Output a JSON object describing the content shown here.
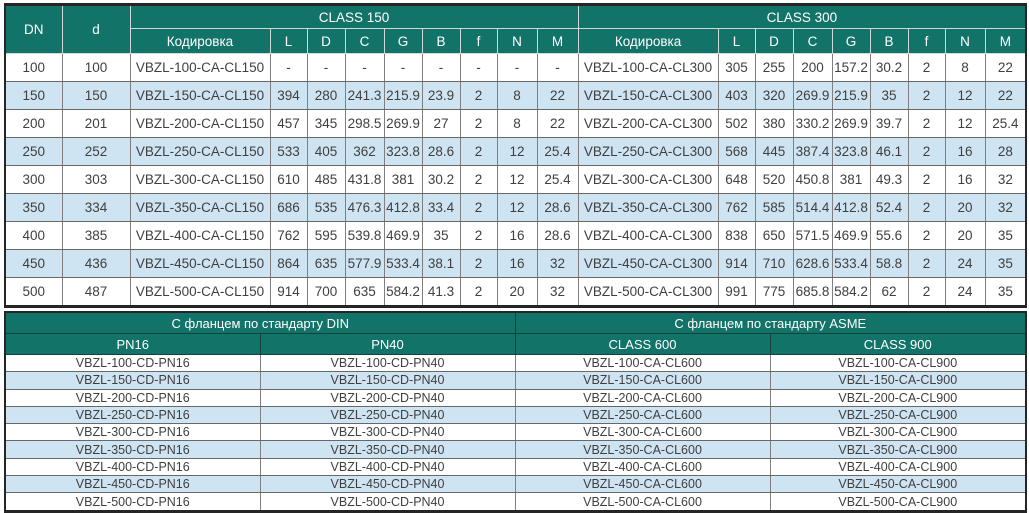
{
  "colors": {
    "header_bg": "#127369",
    "stripe_bg": "#CFE4F2",
    "row_bg": "#FFFFFF",
    "grid_border": "#7F7F7F",
    "outer_border": "#252525",
    "header_text": "#FFFFFF",
    "body_text": "#3F3F3F"
  },
  "top_table": {
    "col_dn": "DN",
    "col_d": "d",
    "group1": "CLASS 150",
    "group2": "CLASS 300",
    "sub_headers": [
      "Кодировка",
      "L",
      "D",
      "C",
      "G",
      "B",
      "f",
      "N",
      "M"
    ],
    "rows": [
      {
        "dn": "100",
        "d": "100",
        "cl150": {
          "code": "VBZL-100-CA-CL150",
          "vals": [
            "-",
            "-",
            "-",
            "-",
            "-",
            "-",
            "-",
            "-"
          ]
        },
        "cl300": {
          "code": "VBZL-100-CA-CL300",
          "vals": [
            "305",
            "255",
            "200",
            "157.2",
            "30.2",
            "2",
            "8",
            "22"
          ]
        }
      },
      {
        "dn": "150",
        "d": "150",
        "cl150": {
          "code": "VBZL-150-CA-CL150",
          "vals": [
            "394",
            "280",
            "241.3",
            "215.9",
            "23.9",
            "2",
            "8",
            "22"
          ]
        },
        "cl300": {
          "code": "VBZL-150-CA-CL300",
          "vals": [
            "403",
            "320",
            "269.9",
            "215.9",
            "35",
            "2",
            "12",
            "22"
          ]
        }
      },
      {
        "dn": "200",
        "d": "201",
        "cl150": {
          "code": "VBZL-200-CA-CL150",
          "vals": [
            "457",
            "345",
            "298.5",
            "269.9",
            "27",
            "2",
            "8",
            "22"
          ]
        },
        "cl300": {
          "code": "VBZL-200-CA-CL300",
          "vals": [
            "502",
            "380",
            "330.2",
            "269.9",
            "39.7",
            "2",
            "12",
            "25.4"
          ]
        }
      },
      {
        "dn": "250",
        "d": "252",
        "cl150": {
          "code": "VBZL-250-CA-CL150",
          "vals": [
            "533",
            "405",
            "362",
            "323.8",
            "28.6",
            "2",
            "12",
            "25.4"
          ]
        },
        "cl300": {
          "code": "VBZL-250-CA-CL300",
          "vals": [
            "568",
            "445",
            "387.4",
            "323.8",
            "46.1",
            "2",
            "16",
            "28"
          ]
        }
      },
      {
        "dn": "300",
        "d": "303",
        "cl150": {
          "code": "VBZL-300-CA-CL150",
          "vals": [
            "610",
            "485",
            "431.8",
            "381",
            "30.2",
            "2",
            "12",
            "25.4"
          ]
        },
        "cl300": {
          "code": "VBZL-300-CA-CL300",
          "vals": [
            "648",
            "520",
            "450.8",
            "381",
            "49.3",
            "2",
            "16",
            "32"
          ]
        }
      },
      {
        "dn": "350",
        "d": "334",
        "cl150": {
          "code": "VBZL-350-CA-CL150",
          "vals": [
            "686",
            "535",
            "476.3",
            "412.8",
            "33.4",
            "2",
            "12",
            "28.6"
          ]
        },
        "cl300": {
          "code": "VBZL-350-CA-CL300",
          "vals": [
            "762",
            "585",
            "514.4",
            "412.8",
            "52.4",
            "2",
            "20",
            "32"
          ]
        }
      },
      {
        "dn": "400",
        "d": "385",
        "cl150": {
          "code": "VBZL-400-CA-CL150",
          "vals": [
            "762",
            "595",
            "539.8",
            "469.9",
            "35",
            "2",
            "16",
            "28.6"
          ]
        },
        "cl300": {
          "code": "VBZL-400-CA-CL300",
          "vals": [
            "838",
            "650",
            "571.5",
            "469.9",
            "55.6",
            "2",
            "20",
            "35"
          ]
        }
      },
      {
        "dn": "450",
        "d": "436",
        "cl150": {
          "code": "VBZL-450-CA-CL150",
          "vals": [
            "864",
            "635",
            "577.9",
            "533.4",
            "38.1",
            "2",
            "16",
            "32"
          ]
        },
        "cl300": {
          "code": "VBZL-450-CA-CL300",
          "vals": [
            "914",
            "710",
            "628.6",
            "533.4",
            "58.8",
            "2",
            "24",
            "35"
          ]
        }
      },
      {
        "dn": "500",
        "d": "487",
        "cl150": {
          "code": "VBZL-500-CA-CL150",
          "vals": [
            "914",
            "700",
            "635",
            "584.2",
            "41.3",
            "2",
            "20",
            "32"
          ]
        },
        "cl300": {
          "code": "VBZL-500-CA-CL300",
          "vals": [
            "991",
            "775",
            "685.8",
            "584.2",
            "62",
            "2",
            "24",
            "35"
          ]
        }
      }
    ]
  },
  "bottom_table": {
    "group1": "С фланцем по стандарту DIN",
    "group2": "С фланцем по стандарту ASME",
    "col_headers": [
      "PN16",
      "PN40",
      "CLASS 600",
      "CLASS 900"
    ],
    "rows": [
      [
        "VBZL-100-CD-PN16",
        "VBZL-100-CD-PN40",
        "VBZL-100-CA-CL600",
        "VBZL-100-CA-CL900"
      ],
      [
        "VBZL-150-CD-PN16",
        "VBZL-150-CD-PN40",
        "VBZL-150-CA-CL600",
        "VBZL-150-CA-CL900"
      ],
      [
        "VBZL-200-CD-PN16",
        "VBZL-200-CD-PN40",
        "VBZL-200-CA-CL600",
        "VBZL-200-CA-CL900"
      ],
      [
        "VBZL-250-CD-PN16",
        "VBZL-250-CD-PN40",
        "VBZL-250-CA-CL600",
        "VBZL-250-CA-CL900"
      ],
      [
        "VBZL-300-CD-PN16",
        "VBZL-300-CD-PN40",
        "VBZL-300-CA-CL600",
        "VBZL-300-CA-CL900"
      ],
      [
        "VBZL-350-CD-PN16",
        "VBZL-350-CD-PN40",
        "VBZL-350-CA-CL600",
        "VBZL-350-CA-CL900"
      ],
      [
        "VBZL-400-CD-PN16",
        "VBZL-400-CD-PN40",
        "VBZL-400-CA-CL600",
        "VBZL-400-CA-CL900"
      ],
      [
        "VBZL-450-CD-PN16",
        "VBZL-450-CD-PN40",
        "VBZL-450-CA-CL600",
        "VBZL-450-CA-CL900"
      ],
      [
        "VBZL-500-CD-PN16",
        "VBZL-500-CD-PN40",
        "VBZL-500-CA-CL600",
        "VBZL-500-CA-CL900"
      ]
    ]
  }
}
